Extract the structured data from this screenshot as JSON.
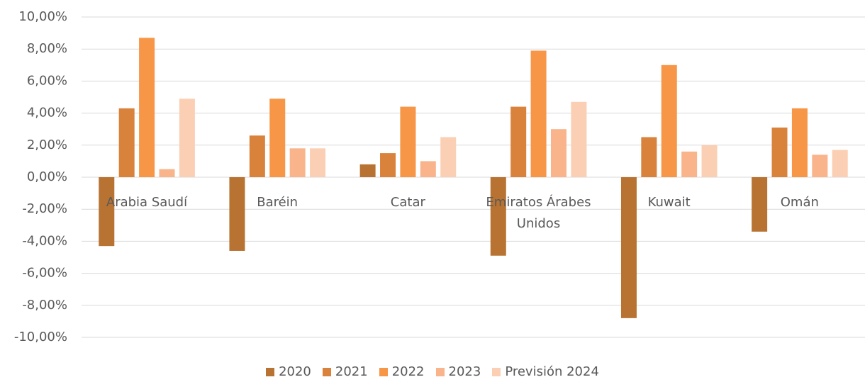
{
  "chart_data": {
    "type": "bar",
    "categories": [
      "Arabia Saudí",
      "Baréin",
      "Catar",
      "Emiratos Árabes Unidos",
      "Kuwait",
      "Omán"
    ],
    "series": [
      {
        "name": "2020",
        "color": "#b87333",
        "values": [
          -4.3,
          -4.6,
          0.8,
          -4.9,
          -8.8,
          -3.4
        ]
      },
      {
        "name": "2021",
        "color": "#d9823b",
        "values": [
          4.3,
          2.6,
          1.5,
          4.4,
          2.5,
          3.1
        ]
      },
      {
        "name": "2022",
        "color": "#f79646",
        "values": [
          8.7,
          4.9,
          4.4,
          7.9,
          7.0,
          4.3
        ]
      },
      {
        "name": "2023",
        "color": "#f9b48c",
        "values": [
          0.5,
          1.8,
          1.0,
          3.0,
          1.6,
          1.4
        ]
      },
      {
        "name": "Previsión 2024",
        "color": "#fbcfb3",
        "values": [
          4.9,
          1.8,
          2.5,
          4.7,
          2.0,
          1.7
        ]
      }
    ],
    "ylim": [
      -10,
      10
    ],
    "yticks": [
      {
        "value": -10,
        "label": "-10,00%"
      },
      {
        "value": -8,
        "label": "-8,00%"
      },
      {
        "value": -6,
        "label": "-6,00%"
      },
      {
        "value": -4,
        "label": "-4,00%"
      },
      {
        "value": -2,
        "label": "-2,00%"
      },
      {
        "value": 0,
        "label": "0,00%"
      },
      {
        "value": 2,
        "label": "2,00%"
      },
      {
        "value": 4,
        "label": "4,00%"
      },
      {
        "value": 6,
        "label": "6,00%"
      },
      {
        "value": 8,
        "label": "8,00%"
      },
      {
        "value": 10,
        "label": "10,00%"
      }
    ],
    "grid": true,
    "legend": "bottom"
  }
}
